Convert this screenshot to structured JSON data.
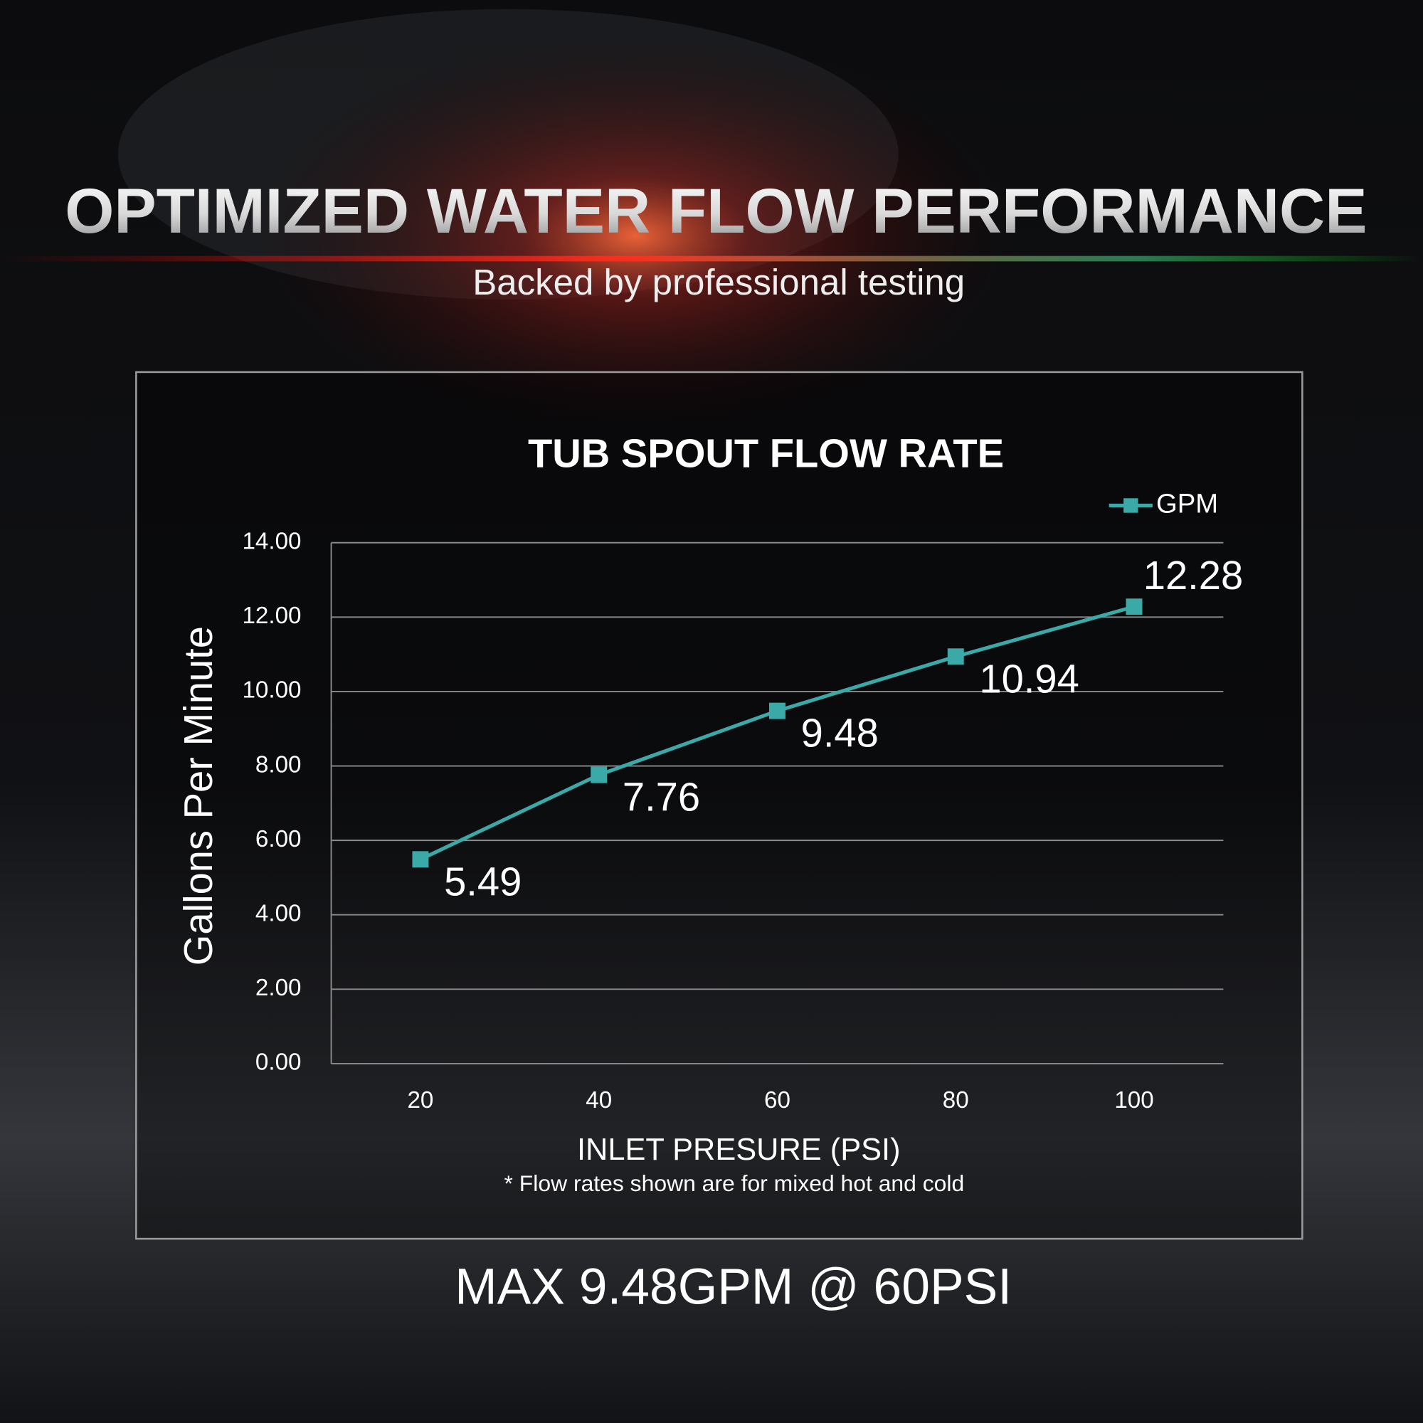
{
  "header": {
    "title": "OPTIMIZED WATER FLOW PERFORMANCE",
    "subtitle": "Backed by professional testing"
  },
  "chart_data": {
    "type": "line",
    "title": "TUB SPOUT FLOW RATE",
    "x": [
      20,
      40,
      60,
      80,
      100
    ],
    "series": [
      {
        "name": "GPM",
        "color": "#3aa9a8",
        "values": [
          5.49,
          7.76,
          9.48,
          10.94,
          12.28
        ]
      }
    ],
    "xlim": [
      10,
      110
    ],
    "xticks": [
      20,
      40,
      60,
      80,
      100
    ],
    "ylim": [
      0,
      14
    ],
    "yticks": [
      {
        "value": 0,
        "label": "0.00"
      },
      {
        "value": 2,
        "label": "2.00"
      },
      {
        "value": 4,
        "label": "4.00"
      },
      {
        "value": 6,
        "label": "6.00"
      },
      {
        "value": 8,
        "label": "8.00"
      },
      {
        "value": 10,
        "label": "10.00"
      },
      {
        "value": 12,
        "label": "12.00"
      },
      {
        "value": 14,
        "label": "14.00"
      }
    ],
    "grid": true,
    "legend": "top-right",
    "y_label": "Gallons Per Minute",
    "x_label": "INLET PRESURE (PSI)",
    "note": "* Flow rates shown are for mixed hot and cold"
  },
  "footer": "MAX 9.48GPM @ 60PSI"
}
